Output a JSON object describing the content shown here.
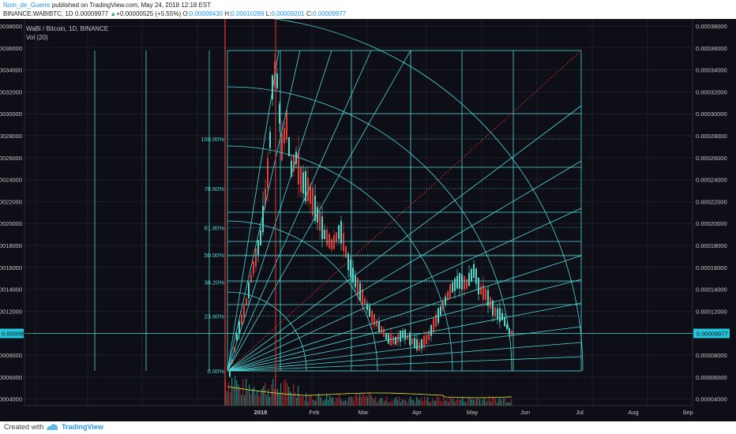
{
  "header": {
    "author": "Nom_de_Guerre",
    "published": " published on TradingView.com, May 24, 2018 12:18 EST",
    "symbol": "BINANCE:WABIBTC, 1D",
    "last": "0.00009977",
    "change_arrow": "▲",
    "change": "+0.00000525 (+5.55%)",
    "o_label": "O:",
    "o_value": "0.00009430",
    "h_label": "H:",
    "h_value": "0.00010289",
    "l_label": "L:",
    "l_value": "0.00009201",
    "c_label": "C:",
    "c_value": "0.00009977"
  },
  "chart": {
    "title": "WaBi / Bitcoin, 1D, BINANCE",
    "volume_label": "Vol (20)",
    "price_axis": [
      "0.00038000",
      "0.00036000",
      "0.00034000",
      "0.00032000",
      "0.00030000",
      "0.00028000",
      "0.00026000",
      "0.00024000",
      "0.00022000",
      "0.00020000",
      "0.00018000",
      "0.00016000",
      "0.00014000",
      "0.00012000",
      "0.00008000",
      "0.00006000",
      "0.00004000"
    ],
    "price_axis_values": [
      0.00038,
      0.00036,
      0.00034,
      0.00032,
      0.0003,
      0.00028,
      0.00026,
      0.00024,
      0.00022,
      0.0002,
      0.00018,
      0.00016,
      0.00014,
      0.00012,
      8e-05,
      6e-05,
      4e-05
    ],
    "current_price_label": "0.00009977",
    "current_price": 9.977e-05,
    "time_axis": [
      "2018",
      "Feb",
      "Mar",
      "Apr",
      "May",
      "Jun",
      "Jul",
      "Aug",
      "Sep"
    ],
    "fib_levels": [
      "100.00%",
      "78.60%",
      "61.80%",
      "50.00%",
      "38.20%",
      "23.60%",
      "0.00%"
    ],
    "fib_values": [
      1.0,
      0.786,
      0.618,
      0.5,
      0.382,
      0.236,
      0.0
    ],
    "colors": {
      "background": "#0d0e16",
      "candle_up": "#4fd8c8",
      "candle_down": "#e53935",
      "gann": "#4fd8d8",
      "diagonal": "#e53935",
      "vol_ma": "#e8e33a"
    }
  },
  "footer": {
    "created": "Created with",
    "brand": "TradingView",
    "logo_icon": "tradingview-logo-icon"
  }
}
